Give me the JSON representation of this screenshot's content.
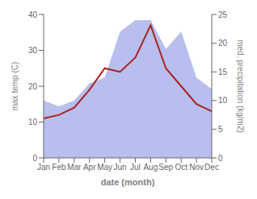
{
  "chart_data": {
    "type": "line",
    "xlabel": "date (month)",
    "ylabel": "max temp (C)",
    "y2label": "med. precipitation (kg/m2)",
    "categories": [
      "Jan",
      "Feb",
      "Mar",
      "Apr",
      "May",
      "Jun",
      "Jul",
      "Aug",
      "Sep",
      "Oct",
      "Nov",
      "Dec"
    ],
    "series": [
      {
        "type": "area",
        "axis": "y2",
        "color": "#b8bfee",
        "values": [
          10,
          9,
          10,
          13,
          14,
          22,
          24,
          24,
          19,
          22,
          14,
          12
        ]
      },
      {
        "type": "line",
        "color": "#aa2222",
        "values": [
          11,
          12,
          14,
          19,
          25,
          24,
          28,
          37,
          25,
          20,
          15,
          13
        ]
      }
    ],
    "ylim": [
      0,
      40
    ],
    "yticks": [
      0,
      10,
      20,
      30,
      40
    ],
    "y2lim": [
      0,
      25
    ],
    "y2ticks": [
      0,
      5,
      10,
      15,
      20,
      25
    ],
    "grid": false
  }
}
